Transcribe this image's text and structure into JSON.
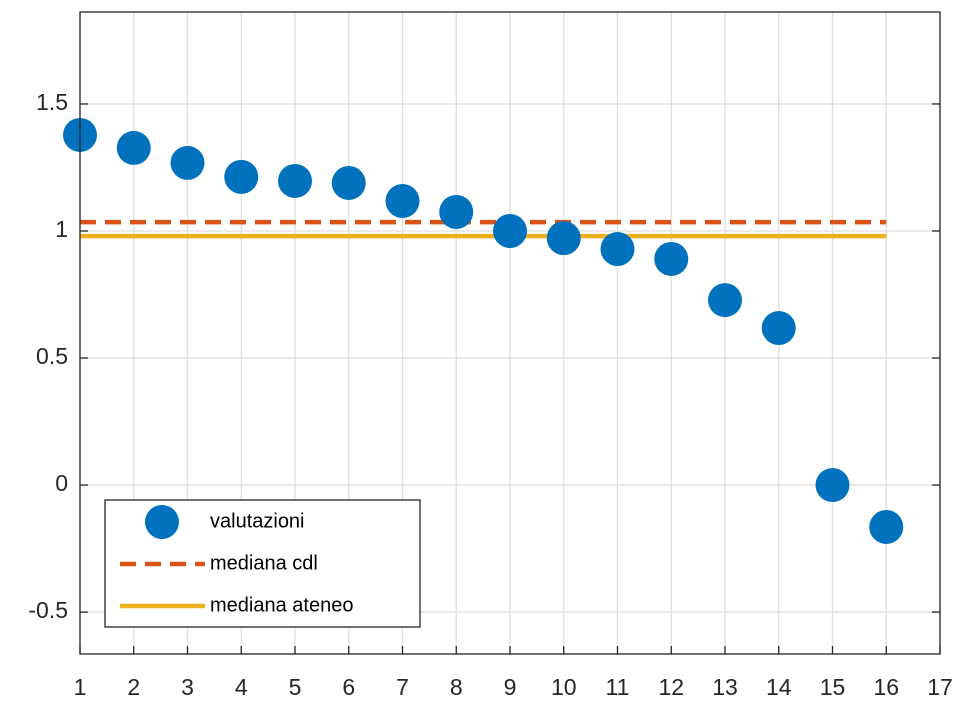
{
  "chart_data": {
    "type": "scatter",
    "x": [
      1,
      2,
      3,
      4,
      5,
      6,
      7,
      8,
      9,
      10,
      11,
      12,
      13,
      14,
      15,
      16
    ],
    "series": [
      {
        "name": "valutazioni",
        "color": "#0072BD",
        "values": [
          1.378,
          1.327,
          1.268,
          1.213,
          1.197,
          1.189,
          1.118,
          1.075,
          1.0,
          0.972,
          0.929,
          0.89,
          0.728,
          0.618,
          0.0,
          -0.165
        ]
      }
    ],
    "lines": [
      {
        "name": "mediana cdl",
        "color": "#D95319",
        "value": 1.035,
        "style": "dashed",
        "x": [
          1,
          16
        ]
      },
      {
        "name": "mediana ateneo",
        "color": "#EDB120",
        "value": 0.98,
        "style": "solid",
        "x": [
          1,
          16
        ]
      }
    ],
    "xlim": [
      1,
      17
    ],
    "xticks": [
      1,
      2,
      3,
      4,
      5,
      6,
      7,
      8,
      9,
      10,
      11,
      12,
      13,
      14,
      15,
      16,
      17
    ],
    "ylim": [
      -0.665,
      1.862
    ],
    "yticks": [
      -0.5,
      0,
      0.5,
      1,
      1.5
    ],
    "grid": true,
    "legend": "southwest"
  }
}
